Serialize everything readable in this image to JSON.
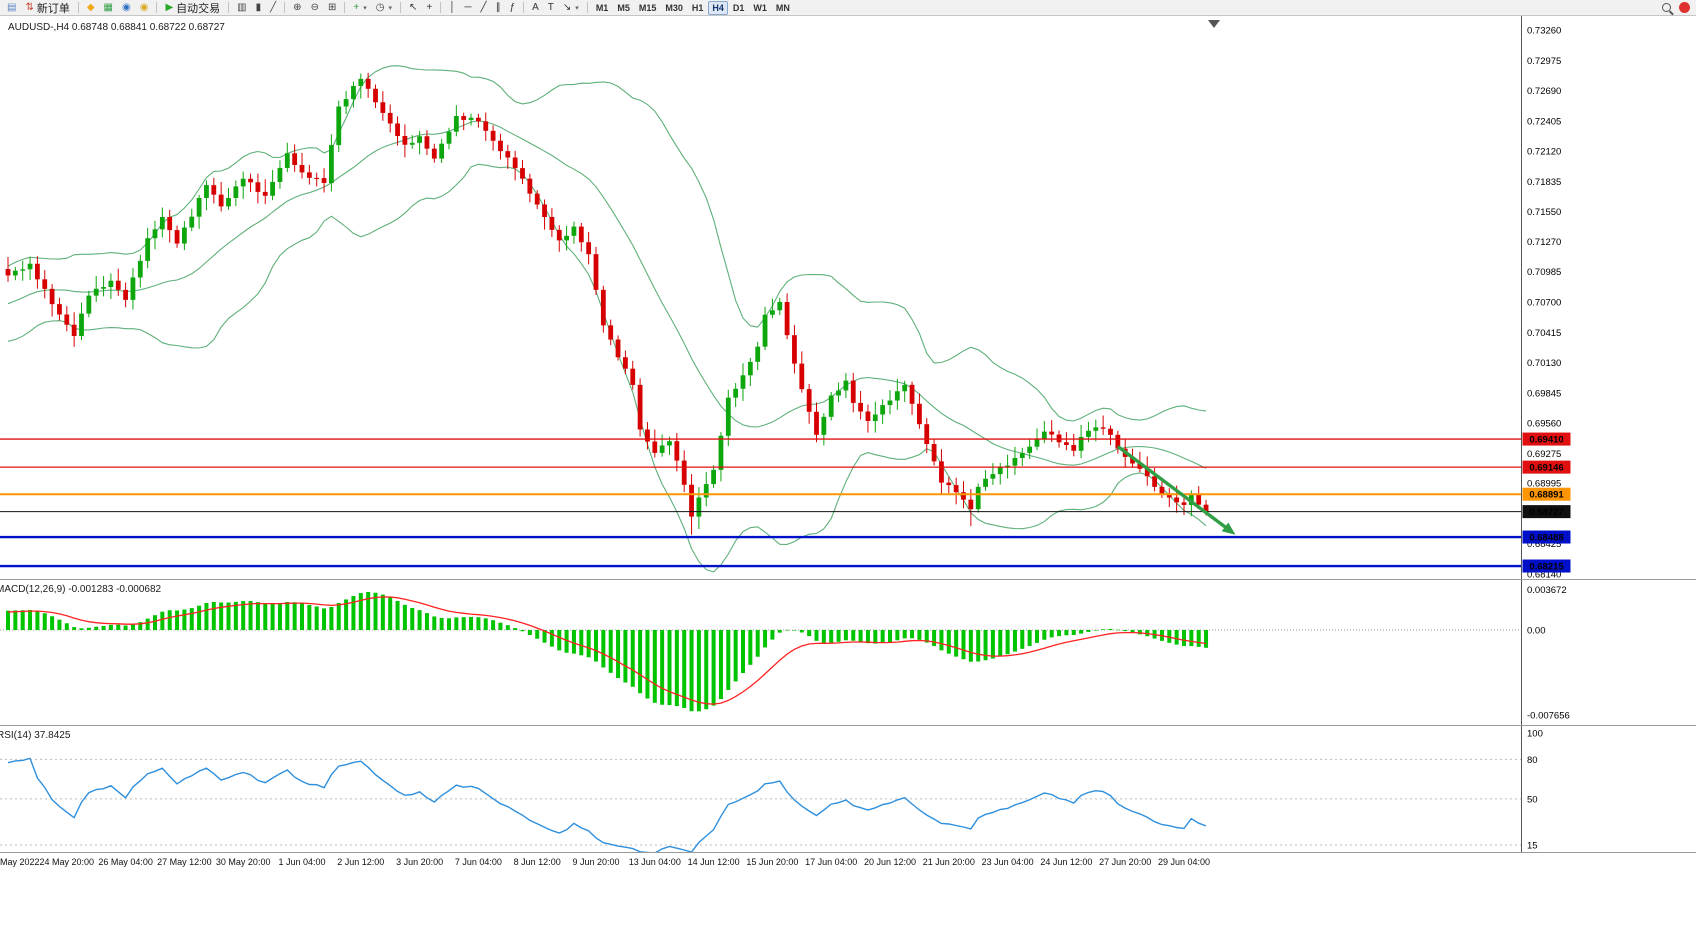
{
  "toolbar": {
    "items": [
      {
        "type": "icon",
        "name": "chart-window-icon",
        "glyph": "▤",
        "color": "#5b84c0"
      },
      {
        "type": "button",
        "name": "new-order-button",
        "glyph": "⇅",
        "color": "#cc4433",
        "label": "新订单"
      },
      {
        "type": "sep"
      },
      {
        "type": "icon",
        "name": "yellow-diamond-icon",
        "glyph": "◆",
        "color": "#f0a818"
      },
      {
        "type": "icon",
        "name": "green-grid-icon",
        "glyph": "▦",
        "color": "#2f9e44"
      },
      {
        "type": "icon",
        "name": "blue-target-icon",
        "glyph": "◉",
        "color": "#2f6fc4"
      },
      {
        "type": "icon",
        "name": "coins-icon",
        "glyph": "◉",
        "color": "#d9a81e"
      },
      {
        "type": "sep"
      },
      {
        "type": "button",
        "name": "autotrading-button",
        "glyph": "▶",
        "color": "#28a828",
        "label": "自动交易"
      },
      {
        "type": "sep"
      },
      {
        "type": "icon-btn",
        "name": "bars-chart-type-button",
        "glyph": "▥",
        "color": "#444"
      },
      {
        "type": "icon-btn",
        "name": "candles-chart-type-button",
        "glyph": "▮",
        "color": "#444"
      },
      {
        "type": "icon-btn",
        "name": "line-chart-type-button",
        "glyph": "╱",
        "color": "#444"
      },
      {
        "type": "sep"
      },
      {
        "type": "icon-btn",
        "name": "zoom-in-button",
        "glyph": "⊕",
        "color": "#444"
      },
      {
        "type": "icon-btn",
        "name": "zoom-out-button",
        "glyph": "⊖",
        "color": "#444"
      },
      {
        "type": "icon-btn",
        "name": "tile-windows-button",
        "glyph": "⊞",
        "color": "#444"
      },
      {
        "type": "sep"
      },
      {
        "type": "icon-btn",
        "name": "new-chart-button",
        "glyph": "+",
        "color": "#2f9e44",
        "caret": true
      },
      {
        "type": "icon-btn",
        "name": "profiles-button",
        "glyph": "◷",
        "color": "#444",
        "caret": true
      },
      {
        "type": "sep"
      },
      {
        "type": "icon-btn",
        "name": "cursor-button",
        "glyph": "↖",
        "color": "#333"
      },
      {
        "type": "icon-btn",
        "name": "crosshair-button",
        "glyph": "+",
        "color": "#333"
      },
      {
        "type": "sep"
      },
      {
        "type": "icon-btn",
        "name": "vertical-line-button",
        "glyph": "│",
        "color": "#333"
      },
      {
        "type": "icon-btn",
        "name": "horizontal-line-button",
        "glyph": "─",
        "color": "#333"
      },
      {
        "type": "icon-btn",
        "name": "trendline-button",
        "glyph": "╱",
        "color": "#333"
      },
      {
        "type": "icon-btn",
        "name": "channel-button",
        "glyph": "∥",
        "color": "#333"
      },
      {
        "type": "icon-btn",
        "name": "fibonacci-button",
        "glyph": "ƒ",
        "color": "#333"
      },
      {
        "type": "sep"
      },
      {
        "type": "icon-btn",
        "name": "text-button",
        "glyph": "A",
        "color": "#333"
      },
      {
        "type": "icon-btn",
        "name": "label-button",
        "glyph": "T",
        "color": "#333"
      },
      {
        "type": "icon-btn",
        "name": "arrows-button",
        "glyph": "↘",
        "color": "#333",
        "caret": true
      },
      {
        "type": "sep"
      }
    ],
    "timeframes": [
      "M1",
      "M5",
      "M15",
      "M30",
      "H1",
      "H4",
      "D1",
      "W1",
      "MN"
    ],
    "active_timeframe": "H4"
  },
  "chart": {
    "symbol_line": "AUDUSD-,H4  0.68748 0.68841 0.68722 0.68727",
    "price_axis_labels": [
      "0.73260",
      "0.72975",
      "0.72690",
      "0.72405",
      "0.72120",
      "0.71835",
      "0.71550",
      "0.71270",
      "0.70985",
      "0.70700",
      "0.70415",
      "0.70130",
      "0.69845",
      "0.69560",
      "0.69275",
      "0.68995",
      "0.68710",
      "0.68425",
      "0.68140"
    ],
    "hlines": [
      {
        "price": 0.6941,
        "label": "0.69410",
        "color": "#e01010",
        "width": 1.3
      },
      {
        "price": 0.69146,
        "label": "0.69146",
        "color": "#e01010",
        "width": 1.3
      },
      {
        "price": 0.68891,
        "label": "0.68891",
        "color": "#ff9500",
        "width": 2
      },
      {
        "price": 0.68727,
        "label": "0.68727",
        "color": "#101010",
        "width": 1
      },
      {
        "price": 0.68488,
        "label": "0.68488",
        "color": "#0010c8",
        "width": 2.4
      },
      {
        "price": 0.68215,
        "label": "0.68215",
        "color": "#0010c8",
        "width": 2.4
      }
    ],
    "arrow": {
      "from_index": 151,
      "from_price": 0.6934,
      "to_index": 167,
      "to_price": 0.6851,
      "color": "#2f9e44"
    }
  },
  "macd": {
    "label": "MACD(12,26,9) -0.001283 -0.000682",
    "axis_labels": [
      "0.003672",
      "0.00",
      "-0.007656"
    ],
    "histogram_color": "#00c400",
    "signal_color": "#ff2222"
  },
  "rsi": {
    "label": "RSI(14) 37.8425",
    "axis_labels": [
      "100",
      "80",
      "50",
      "15"
    ],
    "levels": [
      80,
      50,
      15
    ],
    "line_color": "#2e8fdd"
  },
  "time_axis": [
    "May 2022",
    "24 May 20:00",
    "26 May 04:00",
    "27 May 12:00",
    "30 May 20:00",
    "1 Jun 04:00",
    "2 Jun 12:00",
    "3 Jun 20:00",
    "7 Jun 04:00",
    "8 Jun 12:00",
    "9 Jun 20:00",
    "13 Jun 04:00",
    "14 Jun 12:00",
    "15 Jun 20:00",
    "17 Jun 04:00",
    "20 Jun 12:00",
    "21 Jun 20:00",
    "23 Jun 04:00",
    "24 Jun 12:00",
    "27 Jun 20:00",
    "29 Jun 04:00"
  ],
  "chart_data": {
    "type": "candlestick",
    "symbol": "AUDUSD",
    "timeframe": "H4",
    "last_bar": {
      "open": 0.68748,
      "high": 0.68841,
      "low": 0.68722,
      "close": 0.68727
    },
    "price_range": {
      "min": 0.6814,
      "max": 0.7326
    },
    "candle_count": 164,
    "close_anchors": [
      [
        0,
        0.7095
      ],
      [
        3,
        0.7106
      ],
      [
        6,
        0.7068
      ],
      [
        9,
        0.7038
      ],
      [
        11,
        0.7076
      ],
      [
        14,
        0.709
      ],
      [
        16,
        0.7072
      ],
      [
        19,
        0.713
      ],
      [
        21,
        0.715
      ],
      [
        23,
        0.7125
      ],
      [
        27,
        0.718
      ],
      [
        29,
        0.716
      ],
      [
        32,
        0.7186
      ],
      [
        35,
        0.717
      ],
      [
        38,
        0.721
      ],
      [
        40,
        0.7192
      ],
      [
        43,
        0.7182
      ],
      [
        45,
        0.7254
      ],
      [
        48,
        0.728
      ],
      [
        50,
        0.7258
      ],
      [
        52,
        0.7238
      ],
      [
        54,
        0.7218
      ],
      [
        56,
        0.7226
      ],
      [
        58,
        0.7205
      ],
      [
        61,
        0.7245
      ],
      [
        64,
        0.724
      ],
      [
        67,
        0.7212
      ],
      [
        69,
        0.7196
      ],
      [
        71,
        0.7172
      ],
      [
        73,
        0.715
      ],
      [
        75,
        0.7128
      ],
      [
        77,
        0.7141
      ],
      [
        79,
        0.7115
      ],
      [
        81,
        0.7048
      ],
      [
        83,
        0.7018
      ],
      [
        85,
        0.6992
      ],
      [
        86,
        0.695
      ],
      [
        88,
        0.6928
      ],
      [
        90,
        0.6939
      ],
      [
        92,
        0.6898
      ],
      [
        93,
        0.6868
      ],
      [
        94,
        0.6886
      ],
      [
        96,
        0.6912
      ],
      [
        98,
        0.698
      ],
      [
        100,
        0.7001
      ],
      [
        102,
        0.7028
      ],
      [
        103,
        0.7058
      ],
      [
        105,
        0.707
      ],
      [
        107,
        0.7012
      ],
      [
        108,
        0.6988
      ],
      [
        110,
        0.6945
      ],
      [
        112,
        0.6982
      ],
      [
        114,
        0.6996
      ],
      [
        115,
        0.6975
      ],
      [
        117,
        0.6958
      ],
      [
        119,
        0.6973
      ],
      [
        121,
        0.6986
      ],
      [
        122,
        0.6992
      ],
      [
        124,
        0.6955
      ],
      [
        126,
        0.692
      ],
      [
        127,
        0.69
      ],
      [
        129,
        0.6891
      ],
      [
        131,
        0.6875
      ],
      [
        132,
        0.6896
      ],
      [
        134,
        0.6908
      ],
      [
        136,
        0.6916
      ],
      [
        138,
        0.6928
      ],
      [
        140,
        0.6941
      ],
      [
        141,
        0.6948
      ],
      [
        143,
        0.6938
      ],
      [
        145,
        0.693
      ],
      [
        146,
        0.6943
      ],
      [
        148,
        0.6952
      ],
      [
        150,
        0.6945
      ],
      [
        151,
        0.6932
      ],
      [
        153,
        0.6918
      ],
      [
        155,
        0.6906
      ],
      [
        156,
        0.6896
      ],
      [
        158,
        0.6886
      ],
      [
        160,
        0.6879
      ],
      [
        161,
        0.6889
      ],
      [
        163,
        0.68727
      ]
    ],
    "wick_overrides": {
      "48": {
        "high": 0.7285
      },
      "93": {
        "low": 0.6851
      },
      "105": {
        "high": 0.7074
      },
      "131": {
        "low": 0.6859
      }
    },
    "indicators": [
      {
        "name": "Bollinger Bands",
        "period": 20,
        "deviation": 2,
        "color": "#5fb07a"
      },
      {
        "name": "MACD",
        "fast": 12,
        "slow": 26,
        "signal": 9,
        "last_macd": -0.001283,
        "last_signal": -0.000682,
        "scale_max": 0.003672,
        "scale_min": -0.007656
      },
      {
        "name": "RSI",
        "period": 14,
        "last": 37.8425
      }
    ],
    "candle_up_color": "#0da60d",
    "candle_down_color": "#d60000"
  }
}
